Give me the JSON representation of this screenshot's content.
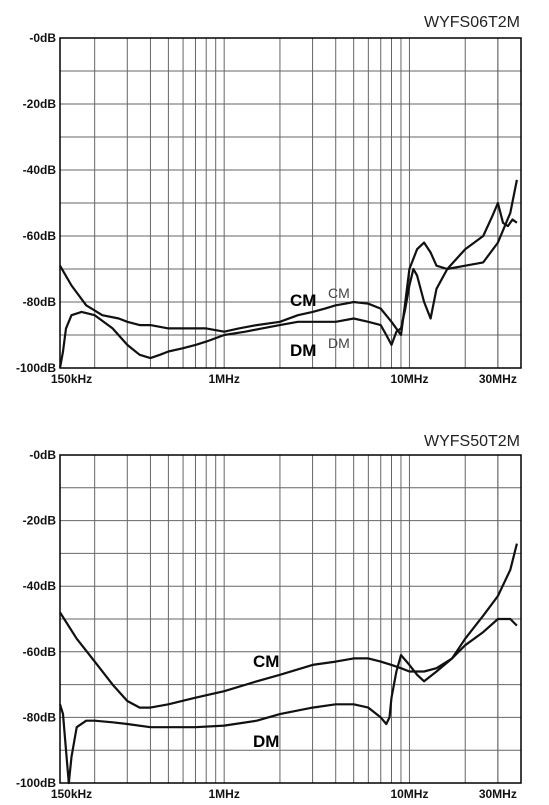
{
  "chart_data": [
    {
      "type": "line",
      "title": "WYFS06T2M",
      "xscale": "log",
      "xlim": [
        0.13,
        40
      ],
      "ylim": [
        -100,
        0
      ],
      "y_ticks": [
        0,
        -20,
        -40,
        -60,
        -80,
        -100
      ],
      "y_tick_labels": [
        "-0dB",
        "-20dB",
        "-40dB",
        "-60dB",
        "-80dB",
        "-100dB"
      ],
      "x_ticks": [
        0.15,
        1,
        10,
        30
      ],
      "x_tick_labels": [
        "150kHz",
        "1MHz",
        "10MHz",
        "30MHz"
      ],
      "grid": true,
      "series": [
        {
          "name": "CM",
          "x": [
            0.13,
            0.15,
            0.18,
            0.22,
            0.27,
            0.3,
            0.35,
            0.4,
            0.5,
            0.6,
            0.7,
            0.8,
            1.0,
            1.2,
            1.5,
            2.0,
            2.5,
            3.0,
            3.5,
            4.0,
            4.5,
            5.0,
            6.0,
            7.0,
            8.0,
            9.0,
            9.5,
            10.0,
            11.0,
            12.0,
            13.0,
            14.0,
            16.0,
            20.0,
            25.0,
            30.0,
            35.0,
            38.0
          ],
          "y": [
            -69,
            -75,
            -81,
            -84,
            -85,
            -86,
            -87,
            -87,
            -88,
            -88,
            -88,
            -88,
            -89,
            -88,
            -87,
            -86,
            -84,
            -83,
            -82,
            -81,
            -80.5,
            -80,
            -80.5,
            -82,
            -86,
            -90,
            -80,
            -70,
            -64,
            -62,
            -65,
            -69,
            -70,
            -69,
            -68,
            -62,
            -53,
            -43
          ]
        },
        {
          "name": "DM",
          "x": [
            0.13,
            0.135,
            0.14,
            0.15,
            0.17,
            0.2,
            0.25,
            0.3,
            0.35,
            0.4,
            0.45,
            0.5,
            0.6,
            0.7,
            0.8,
            1.0,
            1.3,
            1.6,
            2.0,
            2.5,
            3.0,
            3.5,
            4.0,
            5.0,
            6.0,
            7.0,
            7.5,
            8.0,
            8.5,
            9.0,
            9.5,
            10.0,
            10.5,
            11.0,
            12.0,
            13.0,
            14.0,
            16.0,
            20.0,
            25.0,
            28.0,
            30.0,
            32.0,
            34.0,
            36.0,
            38.0
          ],
          "y": [
            -100,
            -95,
            -88,
            -84,
            -83,
            -84,
            -88,
            -93,
            -96,
            -97,
            -96,
            -95,
            -94,
            -93,
            -92,
            -90,
            -89,
            -88,
            -87,
            -86,
            -86,
            -86,
            -86,
            -85,
            -86,
            -87,
            -90,
            -93,
            -89,
            -88,
            -82,
            -75,
            -70,
            -72,
            -80,
            -85,
            -76,
            -70,
            -64,
            -60,
            -54,
            -50,
            -56,
            -57,
            -55,
            -56
          ]
        }
      ],
      "annotations": [
        {
          "text": "CM",
          "style": "bold"
        },
        {
          "text": "CM",
          "style": "light"
        },
        {
          "text": "DM",
          "style": "bold"
        },
        {
          "text": "DM",
          "style": "light"
        }
      ]
    },
    {
      "type": "line",
      "title": "WYFS50T2M",
      "xscale": "log",
      "xlim": [
        0.13,
        40
      ],
      "ylim": [
        -100,
        0
      ],
      "y_ticks": [
        0,
        -20,
        -40,
        -60,
        -80,
        -100
      ],
      "y_tick_labels": [
        "-0dB",
        "-20dB",
        "-40dB",
        "-60dB",
        "-80dB",
        "-100dB"
      ],
      "x_ticks": [
        0.15,
        1,
        10,
        30
      ],
      "x_tick_labels": [
        "150kHz",
        "1MHz",
        "10MHz",
        "30MHz"
      ],
      "grid": true,
      "series": [
        {
          "name": "CM",
          "x": [
            0.13,
            0.16,
            0.2,
            0.25,
            0.3,
            0.35,
            0.4,
            0.5,
            0.7,
            1.0,
            1.5,
            2.0,
            3.0,
            4.0,
            5.0,
            6.0,
            7.0,
            8.0,
            9.0,
            10.0,
            11.0,
            12.0,
            14.0,
            17.0,
            20.0,
            25.0,
            30.0,
            35.0,
            38.0
          ],
          "y": [
            -48,
            -56,
            -63,
            -70,
            -75,
            -77,
            -77,
            -76,
            -74,
            -72,
            -69,
            -67,
            -64,
            -63,
            -62,
            -62,
            -63,
            -64,
            -65,
            -66,
            -66,
            -66,
            -65,
            -62,
            -56,
            -49,
            -43,
            -35,
            -27
          ],
          "label_visible": true
        },
        {
          "name": "DM",
          "x": [
            0.13,
            0.135,
            0.14,
            0.145,
            0.15,
            0.16,
            0.18,
            0.2,
            0.25,
            0.3,
            0.4,
            0.5,
            0.7,
            1.0,
            1.5,
            2.0,
            3.0,
            4.0,
            5.0,
            6.0,
            7.0,
            7.5,
            7.8,
            8.0,
            8.5,
            9.0,
            10.0,
            11.0,
            12.0,
            14.0,
            17.0,
            20.0,
            25.0,
            30.0,
            35.0,
            38.0
          ],
          "y": [
            -76,
            -79,
            -90,
            -100,
            -92,
            -83,
            -81,
            -81,
            -81.5,
            -82,
            -83,
            -83,
            -83,
            -82.5,
            -81,
            -79,
            -77,
            -76,
            -76,
            -77,
            -80,
            -82,
            -80,
            -74,
            -66,
            -61,
            -64,
            -67,
            -69,
            -66,
            -62,
            -58,
            -54,
            -50,
            -50,
            -52
          ],
          "label_visible": true
        }
      ],
      "annotations": [
        {
          "text": "CM",
          "style": "bold"
        },
        {
          "text": "DM",
          "style": "bold"
        }
      ]
    }
  ],
  "colors": {
    "grid": "#666666",
    "frame": "#000000",
    "line": "#111111",
    "background": "#ffffff"
  }
}
